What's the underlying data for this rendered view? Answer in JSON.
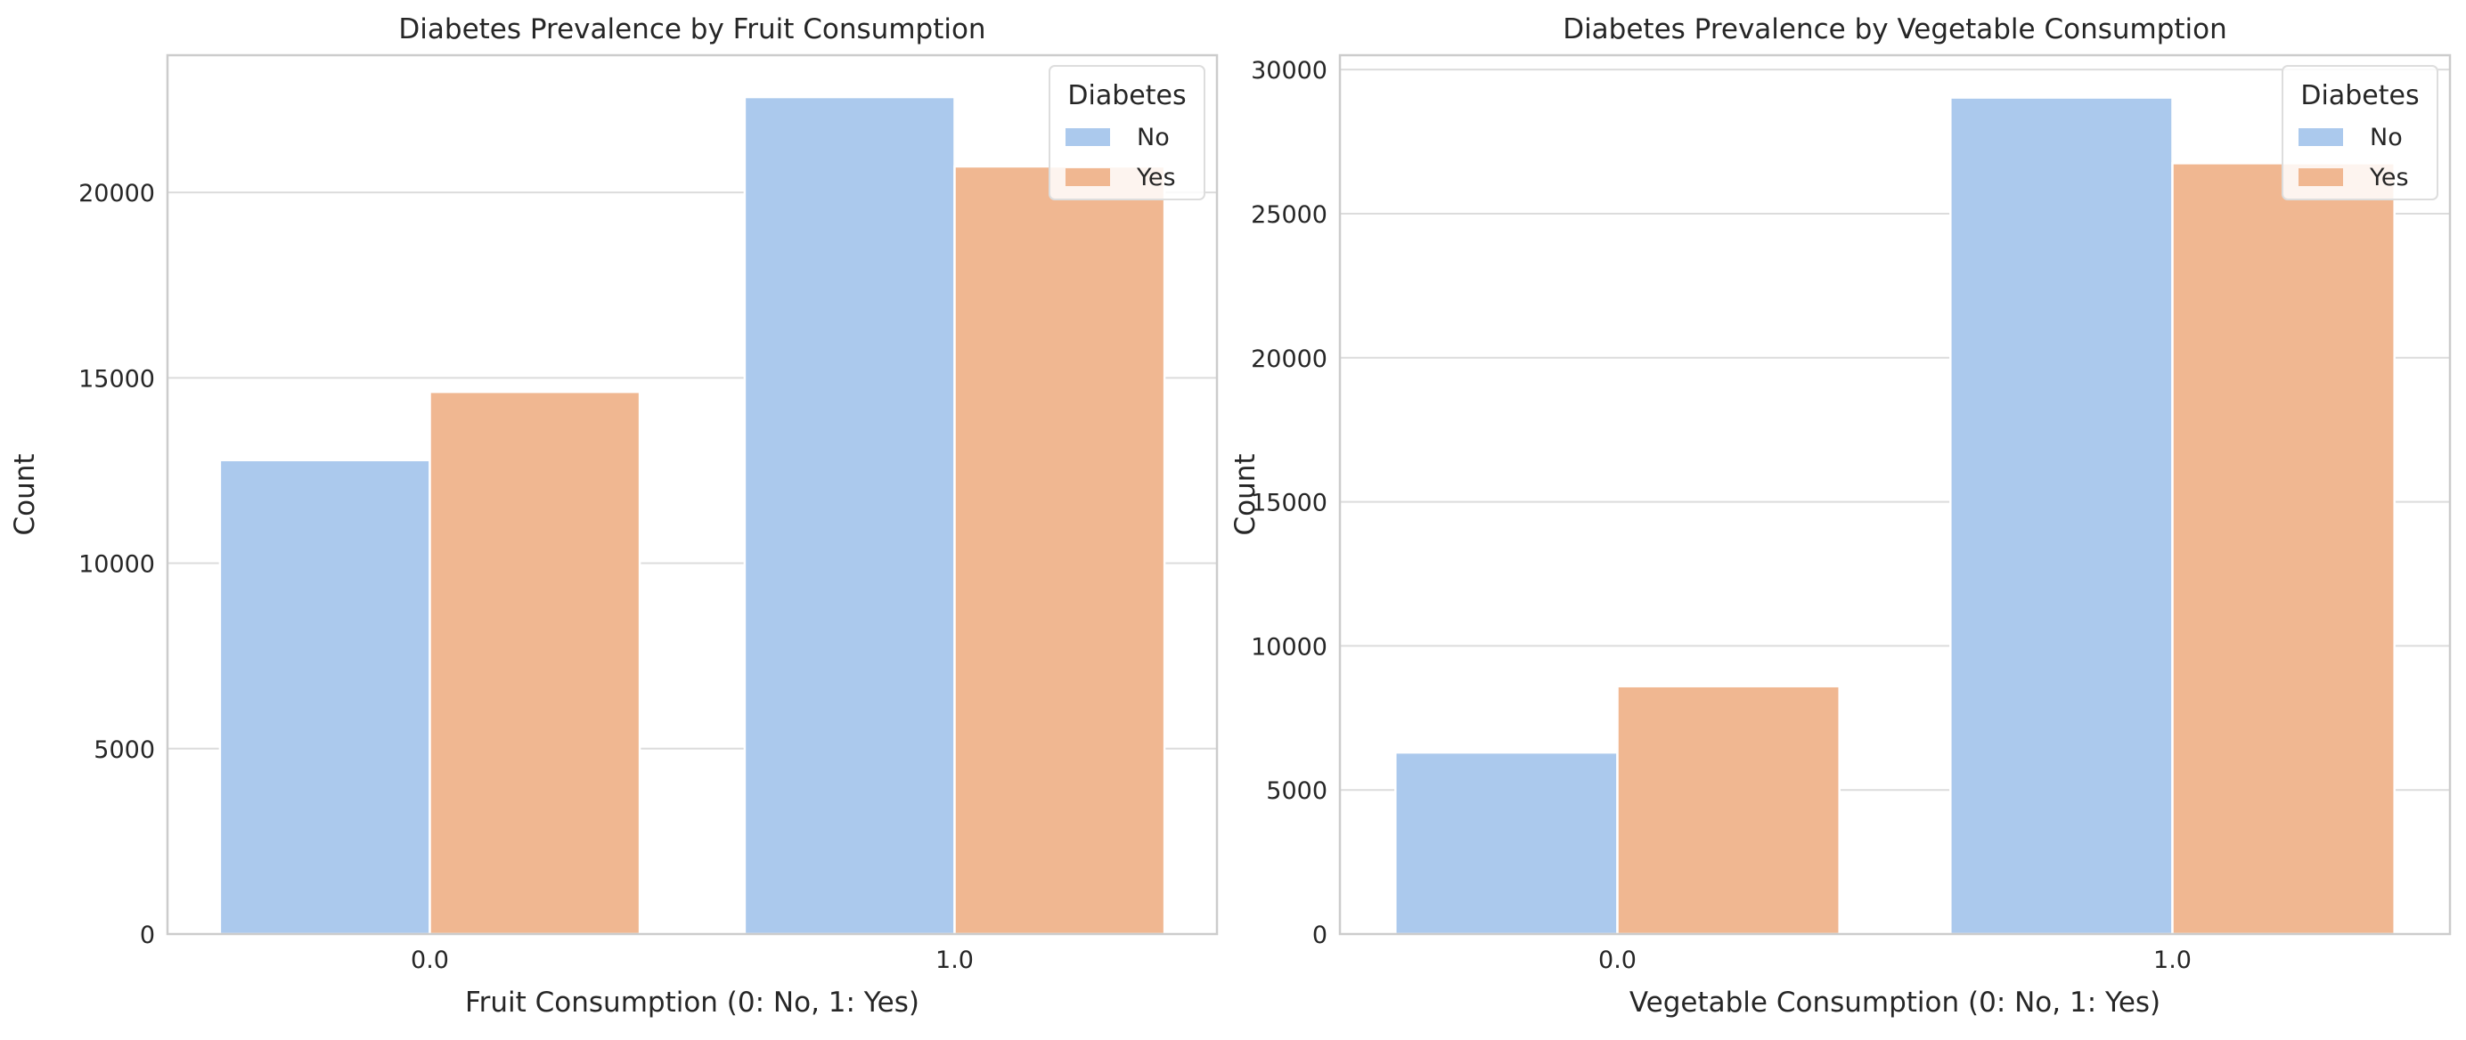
{
  "chart_data": [
    {
      "type": "bar",
      "title": "Diabetes Prevalence by Fruit Consumption",
      "xlabel": "Fruit Consumption (0: No, 1: Yes)",
      "ylabel": "Count",
      "categories": [
        "0.0",
        "1.0"
      ],
      "series": [
        {
          "name": "No",
          "values": [
            12780,
            22570
          ]
        },
        {
          "name": "Yes",
          "values": [
            14620,
            20700
          ]
        }
      ],
      "ylim": [
        0,
        23700
      ],
      "yticks": [
        0,
        5000,
        10000,
        15000,
        20000
      ],
      "grid": "horizontal",
      "legend": {
        "title": "Diabetes",
        "position": "top-right"
      },
      "colors": [
        "#abc9ed",
        "#f0b791"
      ]
    },
    {
      "type": "bar",
      "title": "Diabetes Prevalence by Vegetable Consumption",
      "xlabel": "Vegetable Consumption (0: No, 1: Yes)",
      "ylabel": "Count",
      "categories": [
        "0.0",
        "1.0"
      ],
      "series": [
        {
          "name": "No",
          "values": [
            6300,
            29030
          ]
        },
        {
          "name": "Yes",
          "values": [
            8600,
            26750
          ]
        }
      ],
      "ylim": [
        0,
        30500
      ],
      "yticks": [
        0,
        5000,
        10000,
        15000,
        20000,
        25000,
        30000
      ],
      "grid": "horizontal",
      "legend": {
        "title": "Diabetes",
        "position": "top-right"
      },
      "colors": [
        "#abc9ed",
        "#f0b791"
      ]
    }
  ]
}
